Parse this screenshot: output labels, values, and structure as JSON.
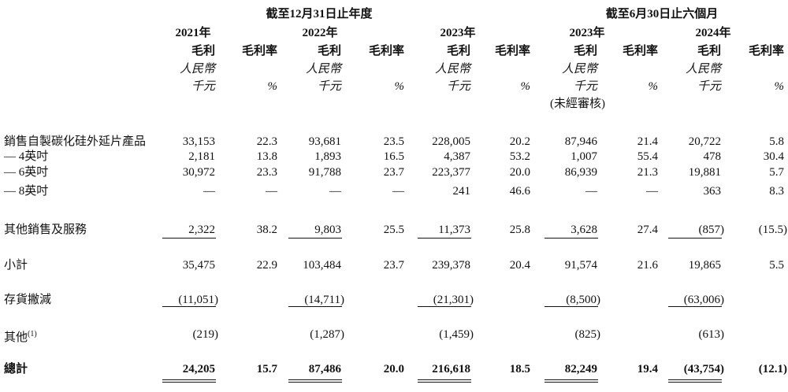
{
  "headers": {
    "group_year": "截至12月31日止年度",
    "group_half": "截至6月30日止六個月",
    "years": [
      "2021年",
      "2022年",
      "2023年",
      "2023年",
      "2024年"
    ],
    "gp_label": "毛利",
    "gm_label": "毛利率",
    "currency_line1": "人民幣",
    "currency_line2": "千元",
    "pct": "%",
    "unaudited": "(未經審核)"
  },
  "rows": [
    {
      "label": "銷售自製碳化硅外延片產品",
      "values": [
        "33,153",
        "22.3",
        "93,681",
        "23.5",
        "228,005",
        "20.2",
        "87,946",
        "21.4",
        "20,722",
        "5.8"
      ]
    },
    {
      "label": "— 4英吋",
      "values": [
        "2,181",
        "13.8",
        "1,893",
        "16.5",
        "4,387",
        "53.2",
        "1,007",
        "55.4",
        "478",
        "30.4"
      ]
    },
    {
      "label": "— 6英吋",
      "values": [
        "30,972",
        "23.3",
        "91,788",
        "23.7",
        "223,377",
        "20.0",
        "86,939",
        "21.3",
        "19,881",
        "5.7"
      ]
    },
    {
      "label": "— 8英吋",
      "values": [
        "—",
        "—",
        "—",
        "—",
        "241",
        "46.6",
        "—",
        "—",
        "363",
        "8.3"
      ]
    },
    {
      "label": "其他銷售及服務",
      "values": [
        "2,322",
        "38.2",
        "9,803",
        "25.5",
        "11,373",
        "25.8",
        "3,628",
        "27.4",
        "(857)",
        "(15.5)"
      ]
    },
    {
      "label": "小計",
      "values": [
        "35,475",
        "22.9",
        "103,484",
        "23.7",
        "239,378",
        "20.4",
        "91,574",
        "21.6",
        "19,865",
        "5.5"
      ]
    },
    {
      "label": "存貨撇減",
      "values": [
        "(11,051)",
        "",
        "(14,711)",
        "",
        "(21,301)",
        "",
        "(8,500)",
        "",
        "(63,006)",
        ""
      ]
    },
    {
      "label": "其他",
      "footnote": "(1)",
      "values": [
        "(219)",
        "",
        "(1,287)",
        "",
        "(1,459)",
        "",
        "(825)",
        "",
        "(613)",
        ""
      ]
    },
    {
      "label": "總計",
      "values": [
        "24,205",
        "15.7",
        "87,486",
        "20.0",
        "216,618",
        "18.5",
        "82,249",
        "19.4",
        "(43,754)",
        "(12.1)"
      ]
    }
  ]
}
